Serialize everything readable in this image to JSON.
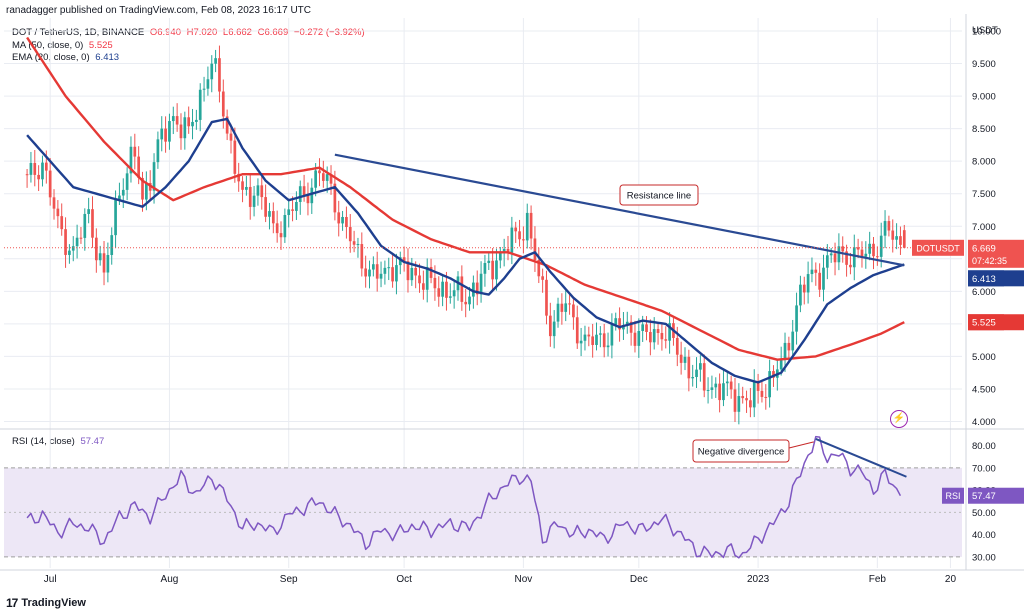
{
  "header": {
    "text": "ranadagger published on TradingView.com, Feb 08, 2023 16:17 UTC"
  },
  "legend": {
    "symbol": "DOT / TetherUS, 1D, BINANCE",
    "ohlc": {
      "o": "O6.940",
      "h": "H7.020",
      "l": "L6.662",
      "c": "C6.669",
      "chg": "−0.272 (−3.92%)"
    },
    "ma_label": "MA (50, close, 0)",
    "ma_value": "5.525",
    "ema_label": "EMA (20, close, 0)",
    "ema_value": "6.413",
    "rsi_label": "RSI (14, close)",
    "rsi_value": "57.47"
  },
  "footer": {
    "brand": "TradingView",
    "logo": "17"
  },
  "colors": {
    "up": "#26a69a",
    "down": "#ef5350",
    "ma": "#e53935",
    "ema": "#1e3f8f",
    "rsi": "#7e57c2",
    "trend": "#2a4a93",
    "grid": "#e9ecf2",
    "rsi_band": "#ede7f6"
  },
  "chart_data": [
    {
      "type": "candlestick",
      "title": "DOT / TetherUS, 1D, BINANCE",
      "currency": "USDT",
      "ylim": [
        3.9,
        10.2
      ],
      "yticks": [
        4.0,
        4.5,
        5.0,
        5.5,
        6.0,
        6.5,
        7.0,
        7.5,
        8.0,
        8.5,
        9.0,
        9.5,
        10.0
      ],
      "ytick_labels": [
        "4.000",
        "4.500",
        "5.000",
        "5.500",
        "6.000",
        "6.500",
        "7.000",
        "7.500",
        "8.000",
        "8.500",
        "9.000",
        "9.500",
        "10.000"
      ],
      "x_labels": [
        "Jul",
        "Aug",
        "Sep",
        "Oct",
        "Nov",
        "Dec",
        "2023",
        "Feb",
        "20"
      ],
      "x_label_days": [
        6,
        37,
        68,
        98,
        129,
        159,
        190,
        221,
        240
      ],
      "last_price": {
        "label": "DOTUSDT",
        "value": "6.669",
        "timer": "07:42:35"
      },
      "ema_tag": {
        "label": "EMA",
        "value": "6.413"
      },
      "ma_tag": {
        "label": "MA",
        "value": "5.525"
      },
      "close_anchors": [
        [
          0,
          7.7
        ],
        [
          4,
          8.0
        ],
        [
          8,
          7.0
        ],
        [
          12,
          6.6
        ],
        [
          16,
          7.2
        ],
        [
          20,
          6.2
        ],
        [
          24,
          7.6
        ],
        [
          28,
          8.1
        ],
        [
          30,
          7.4
        ],
        [
          34,
          8.2
        ],
        [
          38,
          8.7
        ],
        [
          42,
          8.4
        ],
        [
          46,
          9.2
        ],
        [
          48,
          9.5
        ],
        [
          50,
          9.1
        ],
        [
          52,
          8.5
        ],
        [
          56,
          7.4
        ],
        [
          60,
          7.6
        ],
        [
          64,
          6.9
        ],
        [
          68,
          7.2
        ],
        [
          72,
          7.5
        ],
        [
          76,
          7.8
        ],
        [
          79,
          7.6
        ],
        [
          82,
          7.0
        ],
        [
          86,
          6.6
        ],
        [
          90,
          6.2
        ],
        [
          95,
          6.4
        ],
        [
          100,
          6.3
        ],
        [
          105,
          6.1
        ],
        [
          110,
          6.0
        ],
        [
          114,
          5.9
        ],
        [
          118,
          6.2
        ],
        [
          122,
          6.5
        ],
        [
          125,
          6.7
        ],
        [
          128,
          6.9
        ],
        [
          130,
          7.1
        ],
        [
          133,
          6.2
        ],
        [
          136,
          5.5
        ],
        [
          140,
          5.8
        ],
        [
          145,
          5.2
        ],
        [
          150,
          5.3
        ],
        [
          155,
          5.5
        ],
        [
          160,
          5.3
        ],
        [
          165,
          5.4
        ],
        [
          168,
          5.2
        ],
        [
          172,
          4.8
        ],
        [
          176,
          4.6
        ],
        [
          180,
          4.5
        ],
        [
          184,
          4.4
        ],
        [
          188,
          4.3
        ],
        [
          191,
          4.5
        ],
        [
          194,
          4.7
        ],
        [
          197,
          5.0
        ],
        [
          200,
          5.8
        ],
        [
          203,
          6.2
        ],
        [
          206,
          6.3
        ],
        [
          209,
          6.5
        ],
        [
          212,
          6.6
        ],
        [
          215,
          6.5
        ],
        [
          218,
          6.6
        ],
        [
          221,
          6.7
        ],
        [
          224,
          6.95
        ],
        [
          226,
          6.8
        ],
        [
          228,
          6.67
        ]
      ],
      "ma50": [
        [
          0,
          9.9
        ],
        [
          10,
          9.0
        ],
        [
          20,
          8.3
        ],
        [
          30,
          7.7
        ],
        [
          38,
          7.4
        ],
        [
          46,
          7.6
        ],
        [
          56,
          7.8
        ],
        [
          66,
          7.8
        ],
        [
          76,
          7.9
        ],
        [
          84,
          7.6
        ],
        [
          95,
          7.1
        ],
        [
          105,
          6.8
        ],
        [
          115,
          6.6
        ],
        [
          125,
          6.6
        ],
        [
          135,
          6.4
        ],
        [
          145,
          6.1
        ],
        [
          155,
          5.9
        ],
        [
          165,
          5.7
        ],
        [
          175,
          5.4
        ],
        [
          185,
          5.1
        ],
        [
          195,
          4.95
        ],
        [
          205,
          5.0
        ],
        [
          215,
          5.2
        ],
        [
          222,
          5.35
        ],
        [
          228,
          5.525
        ]
      ],
      "ema20": [
        [
          0,
          8.4
        ],
        [
          6,
          8.0
        ],
        [
          12,
          7.6
        ],
        [
          18,
          7.5
        ],
        [
          24,
          7.4
        ],
        [
          30,
          7.3
        ],
        [
          36,
          7.6
        ],
        [
          42,
          8.0
        ],
        [
          48,
          8.6
        ],
        [
          52,
          8.65
        ],
        [
          56,
          8.2
        ],
        [
          62,
          7.7
        ],
        [
          68,
          7.4
        ],
        [
          74,
          7.5
        ],
        [
          80,
          7.6
        ],
        [
          86,
          7.2
        ],
        [
          92,
          6.7
        ],
        [
          98,
          6.45
        ],
        [
          104,
          6.35
        ],
        [
          110,
          6.2
        ],
        [
          116,
          6.0
        ],
        [
          120,
          5.95
        ],
        [
          124,
          6.2
        ],
        [
          128,
          6.5
        ],
        [
          132,
          6.6
        ],
        [
          136,
          6.3
        ],
        [
          142,
          5.9
        ],
        [
          148,
          5.6
        ],
        [
          154,
          5.45
        ],
        [
          160,
          5.55
        ],
        [
          166,
          5.5
        ],
        [
          172,
          5.2
        ],
        [
          178,
          4.9
        ],
        [
          184,
          4.7
        ],
        [
          190,
          4.6
        ],
        [
          196,
          4.75
        ],
        [
          202,
          5.25
        ],
        [
          208,
          5.8
        ],
        [
          214,
          6.05
        ],
        [
          220,
          6.25
        ],
        [
          228,
          6.413
        ]
      ],
      "trendline": {
        "label": "Resistance line",
        "start": [
          80,
          8.1
        ],
        "end": [
          228,
          6.4
        ]
      }
    },
    {
      "type": "line",
      "title": "RSI (14, close)",
      "ylim": [
        25,
        87
      ],
      "yticks": [
        30,
        40,
        50,
        60,
        70,
        80
      ],
      "ytick_labels": [
        "30.00",
        "40.00",
        "50.00",
        "60.00",
        "70.00",
        "80.00"
      ],
      "bands": [
        30,
        70
      ],
      "mid": 50,
      "last": {
        "label": "RSI",
        "value": "57.47"
      },
      "rsi_anchors": [
        [
          0,
          46
        ],
        [
          4,
          49
        ],
        [
          8,
          41
        ],
        [
          12,
          45
        ],
        [
          16,
          43
        ],
        [
          20,
          37
        ],
        [
          24,
          48
        ],
        [
          28,
          53
        ],
        [
          32,
          48
        ],
        [
          36,
          58
        ],
        [
          40,
          66
        ],
        [
          44,
          58
        ],
        [
          48,
          66
        ],
        [
          52,
          56
        ],
        [
          56,
          43
        ],
        [
          60,
          45
        ],
        [
          64,
          41
        ],
        [
          68,
          49
        ],
        [
          72,
          52
        ],
        [
          76,
          55
        ],
        [
          80,
          49
        ],
        [
          84,
          44
        ],
        [
          88,
          36
        ],
        [
          92,
          42
        ],
        [
          96,
          40
        ],
        [
          100,
          44
        ],
        [
          105,
          42
        ],
        [
          110,
          45
        ],
        [
          115,
          43
        ],
        [
          120,
          55
        ],
        [
          124,
          62
        ],
        [
          128,
          66
        ],
        [
          131,
          64
        ],
        [
          134,
          38
        ],
        [
          138,
          45
        ],
        [
          142,
          40
        ],
        [
          146,
          42
        ],
        [
          150,
          38
        ],
        [
          155,
          45
        ],
        [
          160,
          42
        ],
        [
          165,
          47
        ],
        [
          170,
          40
        ],
        [
          174,
          33
        ],
        [
          178,
          31
        ],
        [
          182,
          33
        ],
        [
          186,
          31
        ],
        [
          190,
          38
        ],
        [
          194,
          45
        ],
        [
          198,
          55
        ],
        [
          202,
          72
        ],
        [
          205,
          83
        ],
        [
          208,
          75
        ],
        [
          211,
          76
        ],
        [
          214,
          70
        ],
        [
          217,
          68
        ],
        [
          220,
          60
        ],
        [
          223,
          67
        ],
        [
          225,
          63
        ],
        [
          227,
          57.47
        ]
      ],
      "divergence": {
        "label": "Negative divergence",
        "start": [
          205,
          83
        ],
        "end": [
          227,
          66
        ]
      }
    }
  ]
}
